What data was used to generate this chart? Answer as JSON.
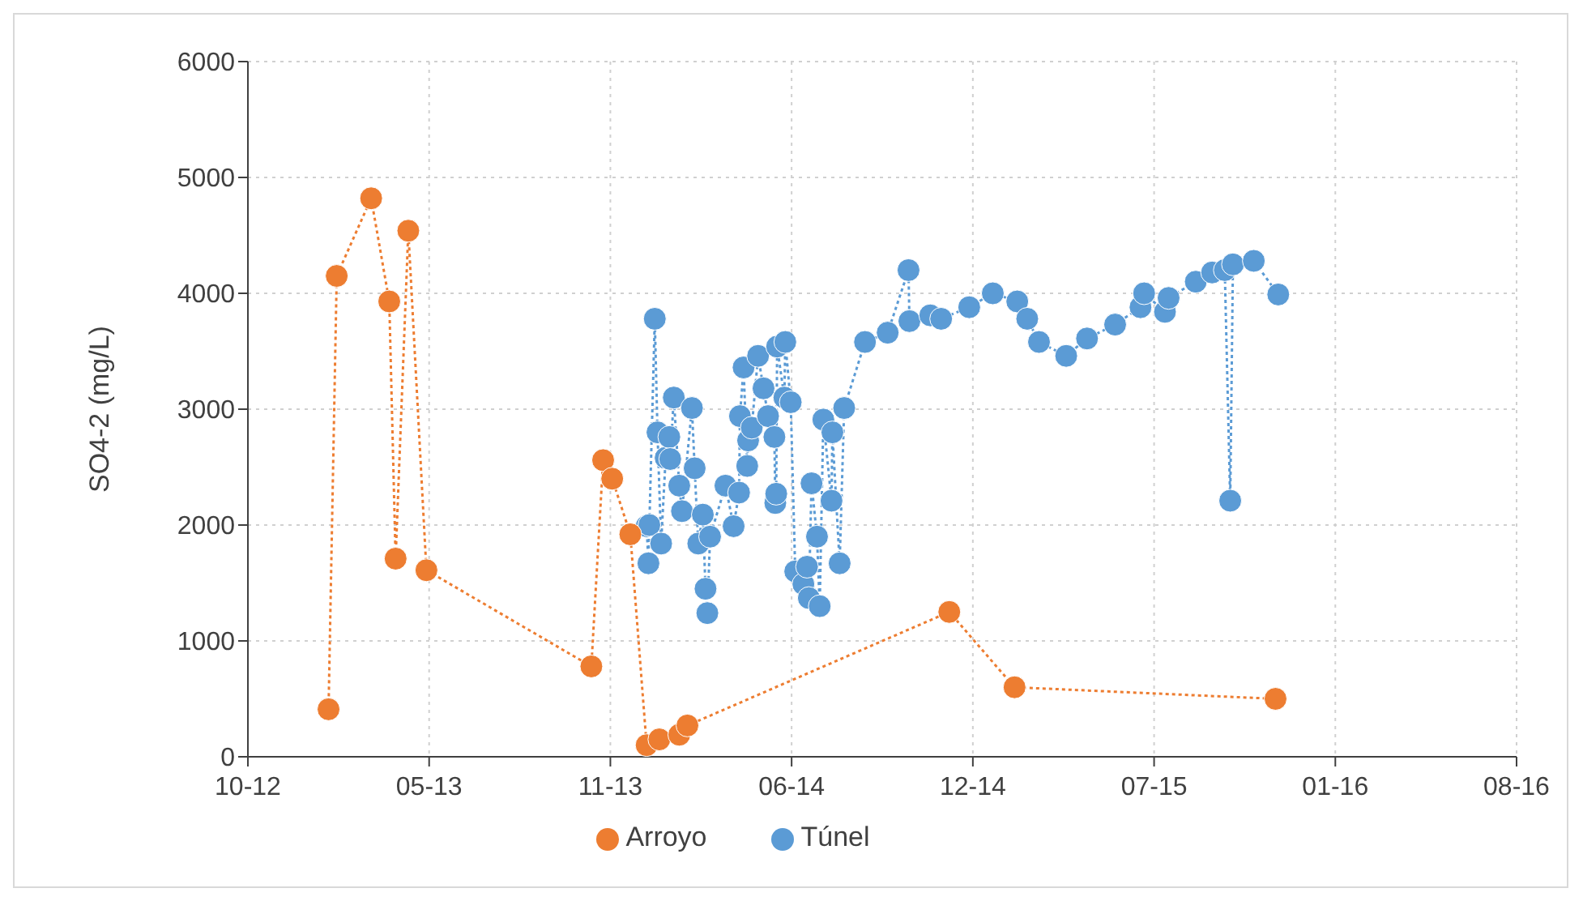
{
  "chart_data": {
    "type": "line",
    "ylabel": "SO4-2 (mg/L)",
    "xlim": [
      "2012-10-18",
      "2016-08-18"
    ],
    "xticks": [
      {
        "value": "2012-10-18",
        "label": "10-12"
      },
      {
        "value": "2013-05-06",
        "label": "05-13"
      },
      {
        "value": "2013-11-22",
        "label": "11-13"
      },
      {
        "value": "2014-06-10",
        "label": "06-14"
      },
      {
        "value": "2014-12-27",
        "label": "12-14"
      },
      {
        "value": "2015-07-15",
        "label": "07-15"
      },
      {
        "value": "2016-01-31",
        "label": "01-16"
      },
      {
        "value": "2016-08-18",
        "label": "08-16"
      }
    ],
    "ylim": [
      0,
      6000
    ],
    "yticks": [
      0,
      1000,
      2000,
      3000,
      4000,
      5000,
      6000
    ],
    "grid": true,
    "legend": "bottom",
    "marker": "circle",
    "line_style": "dotted",
    "series": [
      {
        "name": "Túnel",
        "color": "#5b9bd5",
        "x": [
          "2014-01-01",
          "2014-01-03",
          "2014-01-04",
          "2014-01-10",
          "2014-01-13",
          "2014-01-17",
          "2014-01-22",
          "2014-01-26",
          "2014-01-27",
          "2014-01-31",
          "2014-02-06",
          "2014-02-09",
          "2014-02-20",
          "2014-02-23",
          "2014-02-27",
          "2014-03-04",
          "2014-03-07",
          "2014-03-09",
          "2014-03-12",
          "2014-03-29",
          "2014-04-07",
          "2014-04-13",
          "2014-04-14",
          "2014-04-18",
          "2014-04-22",
          "2014-04-23",
          "2014-04-27",
          "2014-05-04",
          "2014-05-10",
          "2014-05-15",
          "2014-05-22",
          "2014-05-23",
          "2014-05-24",
          "2014-05-25",
          "2014-06-02",
          "2014-06-03",
          "2014-06-09",
          "2014-06-14",
          "2014-06-23",
          "2014-06-27",
          "2014-06-29",
          "2014-07-02",
          "2014-07-08",
          "2014-07-11",
          "2014-07-15",
          "2014-07-24",
          "2014-07-25",
          "2014-08-02",
          "2014-08-07",
          "2014-08-30",
          "2014-09-24",
          "2014-10-17",
          "2014-10-18",
          "2014-11-10",
          "2014-11-22",
          "2014-12-23",
          "2015-01-18",
          "2015-02-14",
          "2015-02-25",
          "2015-03-10",
          "2015-04-09",
          "2015-05-02",
          "2015-06-02",
          "2015-06-30",
          "2015-07-04",
          "2015-07-27",
          "2015-07-31",
          "2015-08-30",
          "2015-09-17",
          "2015-10-01",
          "2015-10-07",
          "2015-10-10",
          "2015-11-02",
          "2015-11-29"
        ],
        "values": [
          1990,
          1670,
          2000,
          3780,
          2800,
          1840,
          2580,
          2760,
          2570,
          3100,
          2340,
          2120,
          3010,
          2490,
          1840,
          2090,
          1450,
          1240,
          1900,
          2340,
          1990,
          2280,
          2940,
          3360,
          2510,
          2730,
          2840,
          3460,
          3180,
          2940,
          2760,
          2190,
          2270,
          3540,
          3100,
          3580,
          3060,
          1600,
          1490,
          1640,
          1370,
          2360,
          1900,
          1300,
          2910,
          2210,
          2800,
          1670,
          3010,
          3580,
          3660,
          4200,
          3760,
          3810,
          3780,
          3880,
          4000,
          3930,
          3780,
          3580,
          3460,
          3610,
          3730,
          3880,
          4000,
          3840,
          3960,
          4100,
          4180,
          4200,
          2210,
          4250,
          4280,
          3990
        ]
      },
      {
        "name": "Arroyo",
        "color": "#ed7d31",
        "x": [
          "2013-01-15",
          "2013-01-24",
          "2013-03-03",
          "2013-03-23",
          "2013-03-30",
          "2013-04-13",
          "2013-05-03",
          "2013-11-01",
          "2013-11-14",
          "2013-11-24",
          "2013-12-14",
          "2014-01-01",
          "2014-01-15",
          "2014-02-06",
          "2014-02-15",
          "2014-12-01",
          "2015-02-11",
          "2015-11-26"
        ],
        "values": [
          410,
          4150,
          4820,
          3930,
          1710,
          4540,
          1610,
          780,
          2560,
          2400,
          1920,
          100,
          150,
          190,
          270,
          1250,
          600,
          500
        ]
      }
    ]
  }
}
